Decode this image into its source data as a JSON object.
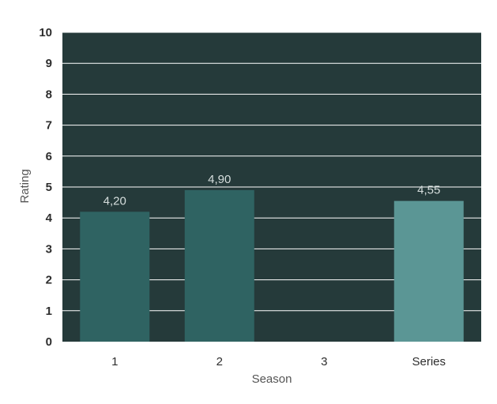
{
  "chart_data": {
    "type": "bar",
    "categories": [
      "1",
      "2",
      "3",
      "Series"
    ],
    "values": [
      4.2,
      4.9,
      null,
      4.55
    ],
    "data_labels": [
      "4,20",
      "4,90",
      "",
      "4,55"
    ],
    "xlabel": "Season",
    "ylabel": "Rating",
    "ylim": [
      0,
      10
    ],
    "yticks": [
      "0",
      "1",
      "2",
      "3",
      "4",
      "5",
      "6",
      "7",
      "8",
      "9",
      "10"
    ],
    "grid": true,
    "colors": {
      "plot_background": "#253a3a",
      "gridline": "#ffffff",
      "season_bar": "#2f6362",
      "series_bar": "#5b9695",
      "data_label": "#d6dedd"
    }
  }
}
